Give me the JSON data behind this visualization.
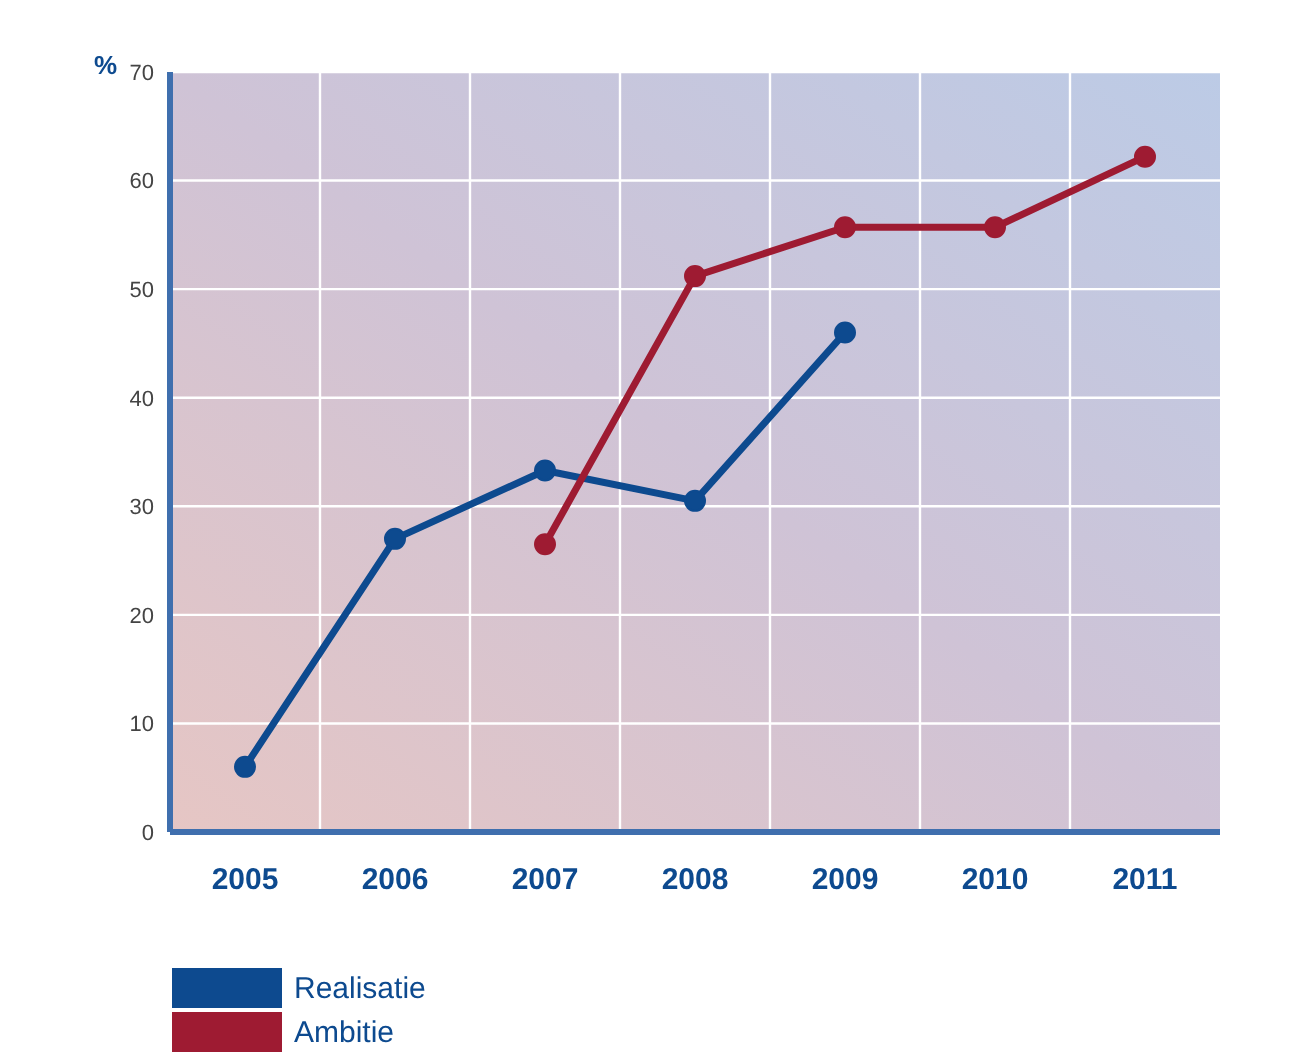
{
  "chart_data": {
    "type": "line",
    "ylabel": "%",
    "categories": [
      "2005",
      "2006",
      "2007",
      "2008",
      "2009",
      "2010",
      "2011"
    ],
    "series": [
      {
        "name": "Realisatie",
        "color": "#0d4a8f",
        "values": [
          6,
          27,
          33.3,
          30.5,
          46,
          null,
          null
        ]
      },
      {
        "name": "Ambitie",
        "color": "#9e1b32",
        "values": [
          null,
          null,
          26.5,
          51.2,
          55.7,
          55.7,
          62.2
        ]
      }
    ],
    "ylim": [
      0,
      70
    ],
    "yticks": [
      0,
      10,
      20,
      30,
      40,
      50,
      60,
      70
    ],
    "grid": true,
    "legend": "bottom left",
    "marker": "circle",
    "line_style": "solid"
  }
}
